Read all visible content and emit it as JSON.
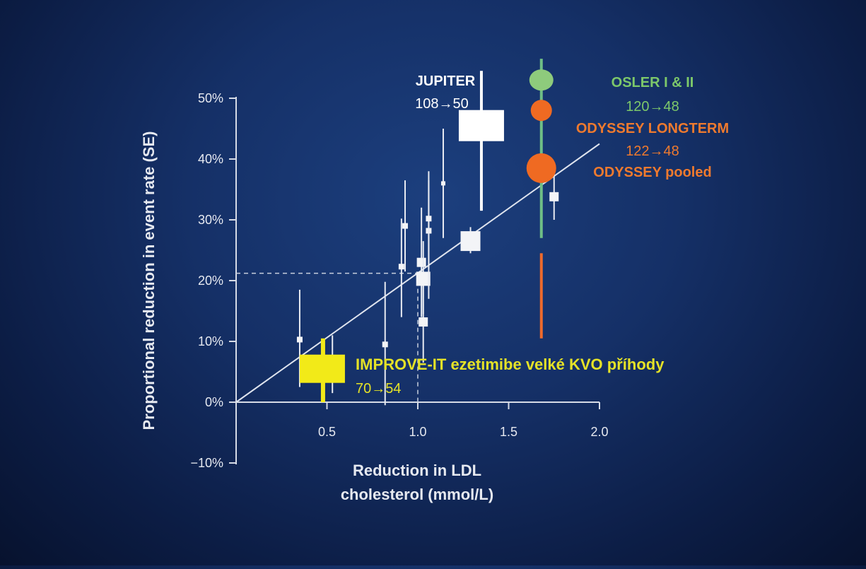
{
  "chart_data": {
    "type": "scatter",
    "xlabel_lines": [
      "Reduction in LDL",
      "cholesterol (mmol/L)"
    ],
    "ylabel": "Proportional reduction in event rate (SE)",
    "x_ticks": [
      "0.5",
      "1.0",
      "1.5",
      "2.0"
    ],
    "x_tick_values": [
      0.5,
      1.0,
      1.5,
      2.0
    ],
    "y_ticks": [
      "50%",
      "40%",
      "30%",
      "20%",
      "10%",
      "0%",
      "−10%"
    ],
    "y_tick_values": [
      50,
      40,
      30,
      20,
      10,
      0,
      -10
    ],
    "xlim": [
      0,
      2.0
    ],
    "ylim": [
      -10,
      50
    ],
    "regression_line": {
      "x": [
        0,
        2.0
      ],
      "y": [
        0,
        42.5
      ]
    },
    "reference": {
      "x": 1.0,
      "y": 21.2
    },
    "points": [
      {
        "x": 0.35,
        "y": 10.3,
        "lo": 2.5,
        "hi": 18.5,
        "size": "small"
      },
      {
        "x": 0.53,
        "y": 5.0,
        "lo": 1.5,
        "hi": 11.0,
        "size": "small"
      },
      {
        "x": 0.82,
        "y": 9.5,
        "lo": -0.5,
        "hi": 19.8,
        "size": "small"
      },
      {
        "x": 0.91,
        "y": 22.3,
        "lo": 14.0,
        "hi": 30.2,
        "size": "small"
      },
      {
        "x": 0.93,
        "y": 29.0,
        "lo": 21.5,
        "hi": 36.5,
        "size": "small"
      },
      {
        "x": 1.02,
        "y": 23.0,
        "lo": 14.0,
        "hi": 32.0,
        "size": "medium"
      },
      {
        "x": 1.03,
        "y": 13.2,
        "lo": 6.5,
        "hi": 21.0,
        "size": "medium"
      },
      {
        "x": 1.03,
        "y": 20.3,
        "lo": 14.5,
        "hi": 26.5,
        "size": "large"
      },
      {
        "x": 1.06,
        "y": 28.2,
        "lo": 17.0,
        "hi": 36.5,
        "size": "small"
      },
      {
        "x": 1.06,
        "y": 30.2,
        "lo": 22.0,
        "hi": 38.0,
        "size": "small"
      },
      {
        "x": 1.14,
        "y": 36.0,
        "lo": 27.0,
        "hi": 45.0,
        "size": "tiny"
      },
      {
        "x": 1.29,
        "y": 26.5,
        "lo": 24.5,
        "hi": 28.8,
        "size": "xlarge"
      },
      {
        "x": 1.75,
        "y": 33.8,
        "lo": 30.0,
        "hi": 37.5,
        "size": "medium"
      }
    ],
    "highlighted": [
      {
        "name": "JUPITER",
        "detail": "108→50",
        "x": 1.35,
        "y": 45.5,
        "lo": 31.5,
        "hi": 54.5,
        "marker": "square",
        "color": "#ffffff",
        "label_color": "#ffffff"
      },
      {
        "name": "OSLER I & II",
        "detail": "120→48",
        "x": 1.68,
        "y": 53.0,
        "lo": 27.0,
        "hi": 56.5,
        "marker": "ellipse",
        "color": "#8ecb7c",
        "label_color": "#7dc86a"
      },
      {
        "name": "ODYSSEY LONGTERM",
        "detail": "122→48",
        "x": 1.68,
        "y": 48.0,
        "lo": 10.5,
        "hi": 24.5,
        "marker": "circle",
        "color": "#ef6a22",
        "label_color": "#ef7a2e"
      },
      {
        "name": "ODYSSEY pooled",
        "detail": "",
        "x": 1.68,
        "y": 38.5,
        "lo": null,
        "hi": null,
        "marker": "circle-large",
        "color": "#ef6a22",
        "label_color": "#ef7a2e"
      },
      {
        "name": "IMPROVE-IT ezetimibe velké KVO příhody",
        "detail": "70→54",
        "x": 0.49,
        "y": 5.5,
        "lo": 0.0,
        "hi": 10.5,
        "marker": "square",
        "color": "#f2ea18",
        "label_color": "#e5e227"
      }
    ]
  }
}
